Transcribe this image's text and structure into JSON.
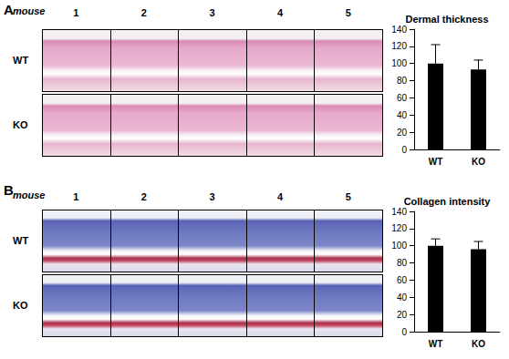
{
  "panels": [
    {
      "label": "A",
      "header": "mouse",
      "mice": [
        1,
        2,
        3,
        4,
        5
      ],
      "rows": [
        "WT",
        "KO"
      ]
    },
    {
      "label": "B",
      "header": "mouse",
      "mice": [
        1,
        2,
        3,
        4,
        5
      ],
      "rows": [
        "WT",
        "KO"
      ]
    }
  ],
  "chart_data": [
    {
      "type": "bar",
      "title": "Dermal thickness",
      "categories": [
        "WT",
        "KO"
      ],
      "values": [
        100,
        93
      ],
      "errors": [
        22,
        11
      ],
      "color": "#000000",
      "ylim": [
        0,
        140
      ],
      "yticks": [
        0,
        20,
        40,
        60,
        80,
        100,
        120,
        140
      ],
      "grid": false
    },
    {
      "type": "bar",
      "title": "Collagen intensity",
      "categories": [
        "WT",
        "KO"
      ],
      "values": [
        100,
        96
      ],
      "errors": [
        8,
        9
      ],
      "color": "#000000",
      "ylim": [
        0,
        140
      ],
      "yticks": [
        0,
        20,
        40,
        60,
        80,
        100,
        120,
        140
      ],
      "grid": false
    }
  ]
}
